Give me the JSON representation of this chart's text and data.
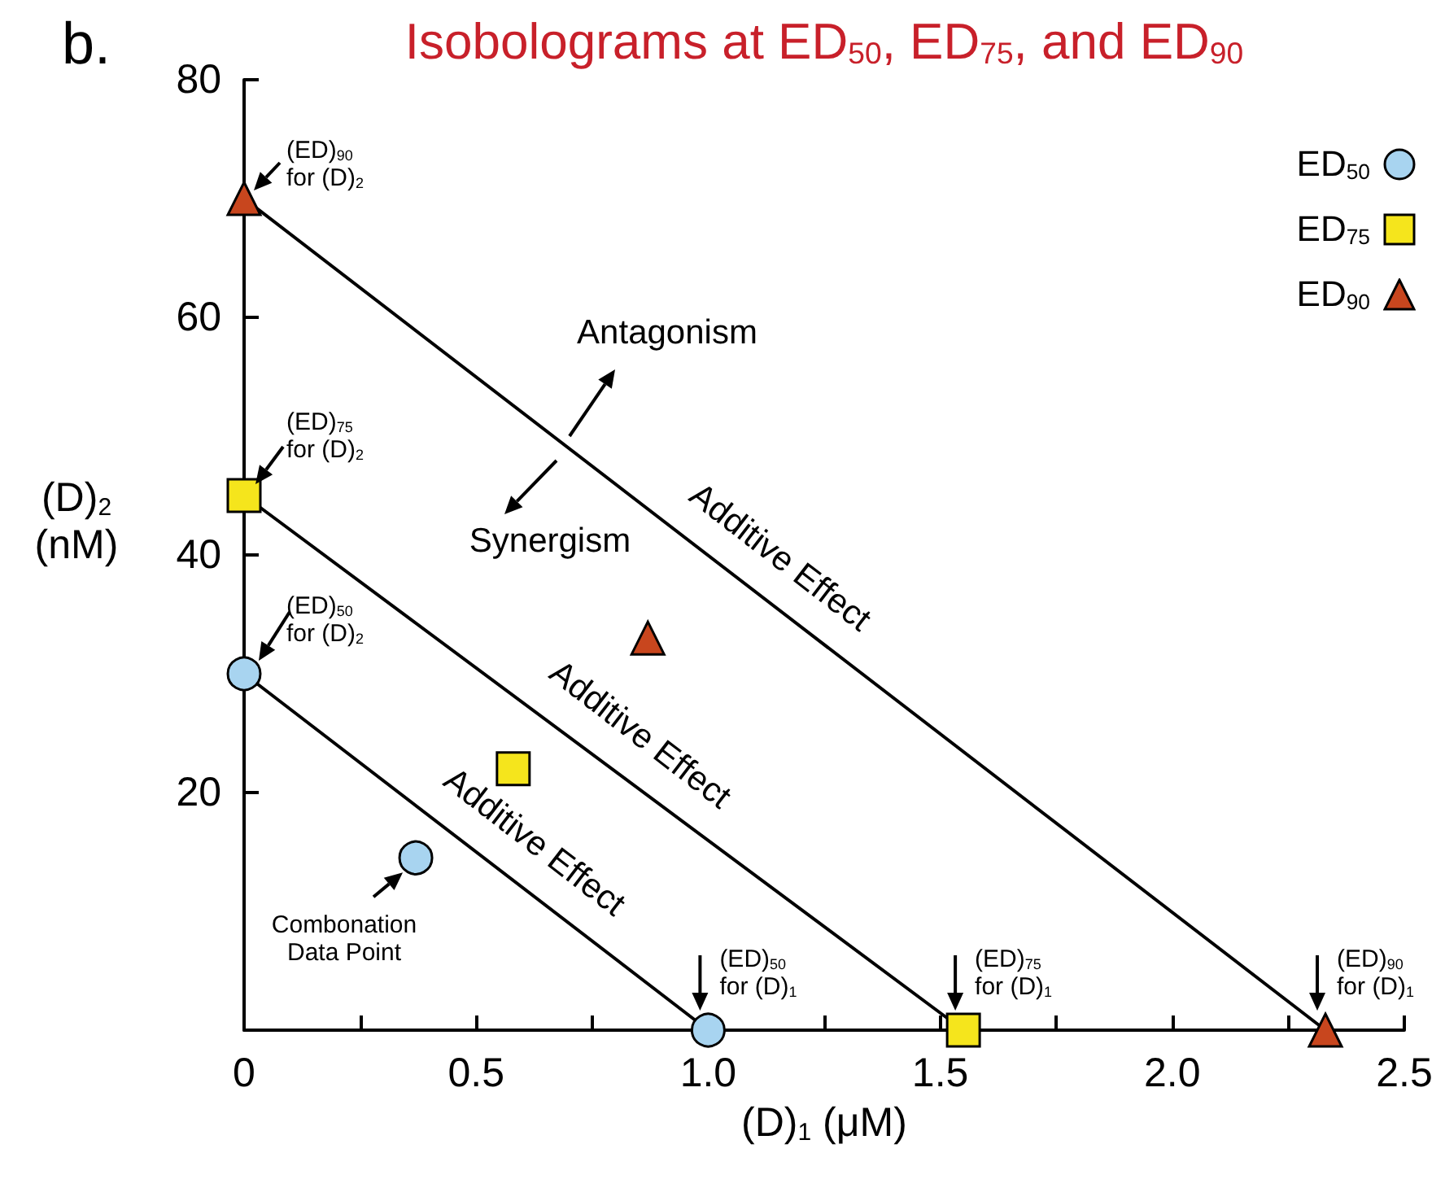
{
  "chart_data": {
    "type": "line",
    "title": "Isobolograms at ED$_{50}$, ED$_{75}$, and ED$_{90}$",
    "xlabel": "(D)$_{1}$ (μM)",
    "ylabel": "(D)$_{2}$ (nM)",
    "xlim": [
      0,
      2.5
    ],
    "xticks": [
      0,
      {
        "value": 0.25,
        "label": null
      },
      0.5,
      {
        "value": 0.75,
        "label": null
      },
      {
        "value": 1,
        "label": "1.0"
      },
      {
        "value": 1.25,
        "label": null
      },
      1.5,
      {
        "value": 1.75,
        "label": null
      },
      {
        "value": 2,
        "label": "2.0"
      },
      {
        "value": 2.25,
        "label": null
      },
      2.5
    ],
    "ylim": [
      0,
      80
    ],
    "yticks": [
      20,
      40,
      60,
      80
    ],
    "legend": "top right",
    "series": [
      {
        "name": "ED$_{50}$",
        "type": "line",
        "marker": "circle",
        "color": "#a8d4f0",
        "x": [
          0,
          1.0
        ],
        "values": [
          30,
          0
        ]
      },
      {
        "name": "ED$_{75}$",
        "type": "line",
        "marker": "square",
        "color": "#f5e51c",
        "x": [
          0,
          1.55
        ],
        "values": [
          45,
          0
        ]
      },
      {
        "name": "ED$_{90}$",
        "type": "line",
        "marker": "triangle",
        "color": "#c8461e",
        "x": [
          0,
          2.33
        ],
        "values": [
          70,
          0
        ]
      },
      {
        "type": "scatter",
        "marker": "circle",
        "color": "#a8d4f0",
        "x": [
          0.37
        ],
        "values": [
          14.5
        ]
      },
      {
        "type": "scatter",
        "marker": "square",
        "color": "#f5e51c",
        "x": [
          0.58
        ],
        "values": [
          22
        ]
      },
      {
        "type": "scatter",
        "marker": "triangle",
        "color": "#c8461e",
        "x": [
          0.87
        ],
        "values": [
          33
        ]
      }
    ],
    "annotations": [
      "b.",
      {
        "text": "(ED)$_{90}$ for (D)$_{2}$",
        "x": 0,
        "y": 70
      },
      {
        "text": "(ED)$_{75}$ for (D)$_{2}$",
        "x": 0,
        "y": 45
      },
      {
        "text": "(ED)$_{50}$ for (D)$_{2}$",
        "x": 0,
        "y": 30
      },
      {
        "text": "(ED)$_{50}$ for (D)$_{1}$",
        "x": 1.0,
        "y": 0
      },
      {
        "text": "(ED)$_{75}$ for (D)$_{1}$",
        "x": 1.55,
        "y": 0
      },
      {
        "text": "(ED)$_{90}$ for (D)$_{1}$",
        "x": 2.33,
        "y": 0
      },
      {
        "text": "Combonation Data Point",
        "x": 0.37,
        "y": 14.5
      },
      "Antagonism",
      "Synergism",
      {
        "text": "Additive Effect",
        "x": 1.1,
        "y": 37
      },
      {
        "text": "Additive Effect",
        "x": 0.8,
        "y": 22
      },
      {
        "text": "Additive Effect",
        "x": 0.57,
        "y": 13
      }
    ]
  }
}
